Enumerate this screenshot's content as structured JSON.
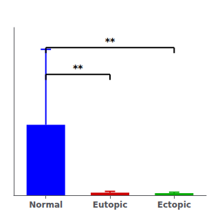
{
  "chart_data": {
    "type": "bar",
    "categories": [
      "Normal",
      "Eutopic",
      "Ectopic"
    ],
    "values": [
      4.2,
      0.15,
      0.12
    ],
    "errors_up": [
      4.5,
      0.08,
      0.06
    ],
    "colors": [
      "#0000ff",
      "#cc0000",
      "#00aa00"
    ],
    "ylim": [
      0,
      10.0
    ],
    "grid": false,
    "tick_labels": "x",
    "annotations": [
      {
        "from": "Normal",
        "to": "Eutopic",
        "y": 7.2,
        "label": "**"
      },
      {
        "from": "Normal",
        "to": "Ectopic",
        "y": 8.8,
        "label": "**"
      }
    ]
  }
}
